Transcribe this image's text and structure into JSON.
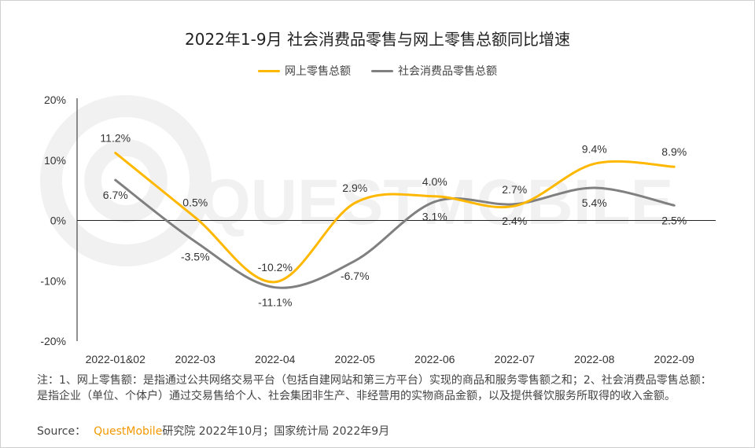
{
  "chart_data": {
    "type": "line",
    "title": "2022年1-9月 社会消费品零售与网上零售总额同比增速",
    "categories": [
      "2022-01&02",
      "2022-03",
      "2022-04",
      "2022-05",
      "2022-06",
      "2022-07",
      "2022-08",
      "2022-09"
    ],
    "y_ticks": [
      "20%",
      "10%",
      "0%",
      "-10%",
      "-20%"
    ],
    "ylim": [
      -20,
      20
    ],
    "grid": false,
    "legend_position": "top",
    "series": [
      {
        "name": "网上零售总额",
        "color": "#ffb800",
        "values": [
          11.2,
          0.5,
          -10.2,
          2.9,
          4.0,
          2.4,
          9.4,
          8.9
        ],
        "labels": [
          "11.2%",
          "0.5%",
          "-10.2%",
          "2.9%",
          "4.0%",
          "2.4%",
          "9.4%",
          "8.9%"
        ]
      },
      {
        "name": "社会消费品零售总额",
        "color": "#808080",
        "values": [
          6.7,
          -3.5,
          -11.1,
          -6.7,
          3.1,
          2.7,
          5.4,
          2.5
        ],
        "labels": [
          "6.7%",
          "-3.5%",
          "-11.1%",
          "-6.7%",
          "3.1%",
          "2.7%",
          "5.4%",
          "2.5%"
        ]
      }
    ]
  },
  "watermark": "QUESTMOBILE",
  "note": "注：1、网上零售额：是指通过公共网络交易平台（包括自建网站和第三方平台）实现的商品和服务零售额之和；2、社会消费品零售总额：是指企业（单位、个体户）通过交易售给个人、社会集团非生产、非经营用的实物商品金额，以及提供餐饮服务所取得的收入金额。",
  "source": {
    "label": "Source：",
    "brand": "QuestMobile",
    "text": "研究院 2022年10月；国家统计局 2022年9月"
  }
}
